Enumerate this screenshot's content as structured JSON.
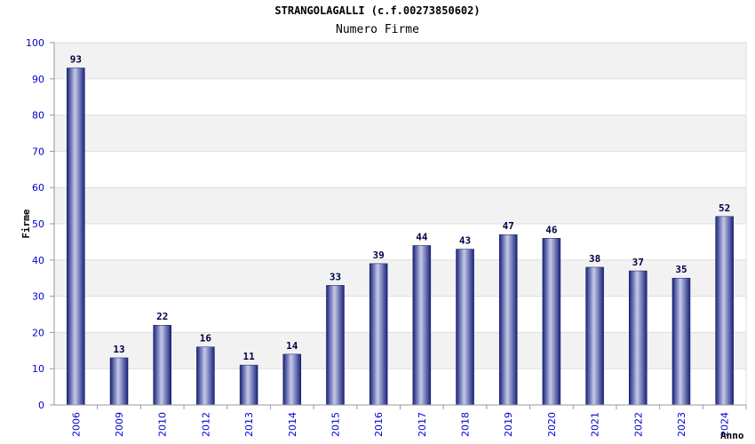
{
  "chart_data": {
    "type": "bar",
    "title": "STRANGOLAGALLI (c.f.00273850602)",
    "subtitle": "Numero Firme",
    "ylabel": "Firme",
    "xlabel": "Anno",
    "ylim": [
      0,
      100
    ],
    "yticks": [
      0,
      10,
      20,
      30,
      40,
      50,
      60,
      70,
      80,
      90,
      100
    ],
    "grid": true,
    "categories": [
      "2006",
      "2009",
      "2010",
      "2012",
      "2013",
      "2014",
      "2015",
      "2016",
      "2017",
      "2018",
      "2019",
      "2020",
      "2021",
      "2022",
      "2023",
      "2024"
    ],
    "values": [
      93,
      13,
      22,
      16,
      11,
      14,
      33,
      39,
      44,
      43,
      47,
      46,
      38,
      37,
      35,
      52
    ],
    "colors": {
      "bar_dark": "#1a237e",
      "bar_light": "#c5cae9",
      "tick_text": "#0000cc",
      "band": "#f2f2f2"
    }
  }
}
